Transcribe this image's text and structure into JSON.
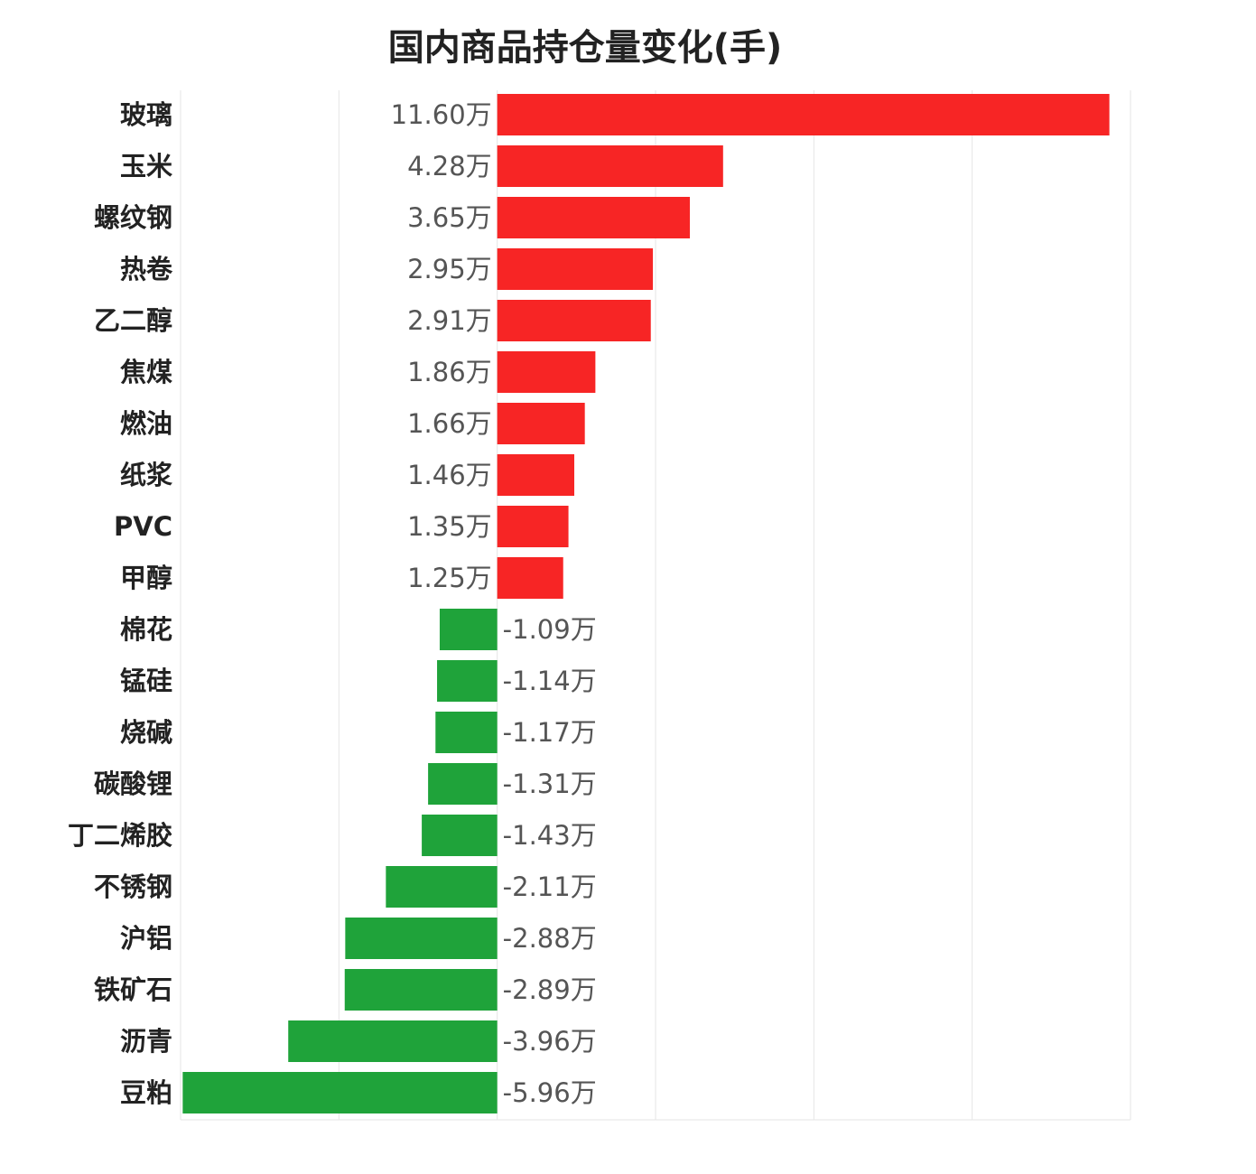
{
  "chart_data": {
    "type": "bar",
    "orientation": "horizontal",
    "title": "国内商品持仓量变化(手)",
    "unit": "万",
    "categories": [
      "玻璃",
      "玉米",
      "螺纹钢",
      "热卷",
      "乙二醇",
      "焦煤",
      "燃油",
      "纸浆",
      "PVC",
      "甲醇",
      "棉花",
      "锰硅",
      "烧碱",
      "碳酸锂",
      "丁二烯胶",
      "不锈钢",
      "沪铝",
      "铁矿石",
      "沥青",
      "豆粕"
    ],
    "values": [
      11.6,
      4.28,
      3.65,
      2.95,
      2.91,
      1.86,
      1.66,
      1.46,
      1.35,
      1.25,
      -1.09,
      -1.14,
      -1.17,
      -1.31,
      -1.43,
      -2.11,
      -2.88,
      -2.89,
      -3.96,
      -5.96
    ],
    "value_labels": [
      "11.60万",
      "4.28万",
      "3.65万",
      "2.95万",
      "2.91万",
      "1.86万",
      "1.66万",
      "1.46万",
      "1.35万",
      "1.25万",
      "-1.09万",
      "-1.14万",
      "-1.17万",
      "-1.31万",
      "-1.43万",
      "-2.11万",
      "-2.88万",
      "-2.89万",
      "-3.96万",
      "-5.96万"
    ],
    "xlim": [
      -6,
      12
    ],
    "grid": true,
    "colors": {
      "positive": "#f72525",
      "negative": "#1fa33a",
      "grid": "#e6e6e6"
    }
  }
}
